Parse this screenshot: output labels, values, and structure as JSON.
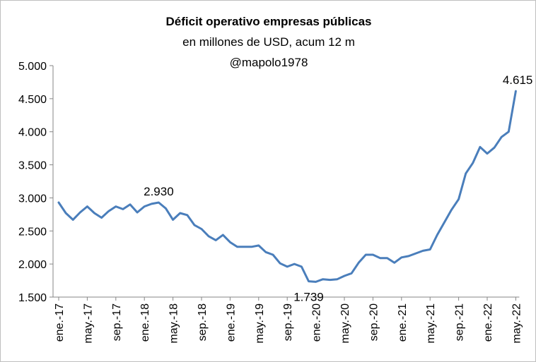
{
  "chart_data": {
    "type": "line",
    "title": "Déficit operativo empresas públicas",
    "subtitle": "en millones de USD, acum 12 m",
    "author": "@mapolo1978",
    "ylim": [
      1500,
      5000
    ],
    "yticks": [
      "1.500",
      "2.000",
      "2.500",
      "3.000",
      "3.500",
      "4.000",
      "4.500",
      "5.000"
    ],
    "ytick_values": [
      1500,
      2000,
      2500,
      3000,
      3500,
      4000,
      4500,
      5000
    ],
    "xtick_labels": [
      "ene.-17",
      "may.-17",
      "sep.-17",
      "ene.-18",
      "may.-18",
      "sep.-18",
      "ene.-19",
      "may.-19",
      "sep.-19",
      "ene.-20",
      "may.-20",
      "sep.-20",
      "ene.-21",
      "may.-21",
      "sep.-21",
      "ene.-22",
      "may.-22"
    ],
    "grid": false,
    "legend": "none",
    "line_color": "#4a7ebb",
    "series": [
      {
        "values": [
          2930,
          2770,
          2670,
          2780,
          2870,
          2770,
          2700,
          2800,
          2870,
          2830,
          2900,
          2780,
          2870,
          2910,
          2930,
          2840,
          2670,
          2770,
          2740,
          2590,
          2530,
          2420,
          2360,
          2440,
          2330,
          2260,
          2260,
          2260,
          2280,
          2180,
          2140,
          2010,
          1960,
          2000,
          1960,
          1739,
          1730,
          1770,
          1760,
          1770,
          1820,
          1860,
          2020,
          2140,
          2140,
          2090,
          2090,
          2020,
          2100,
          2120,
          2160,
          2200,
          2220,
          2440,
          2630,
          2820,
          2980,
          3370,
          3530,
          3770,
          3670,
          3760,
          3920,
          4000,
          4615
        ]
      }
    ],
    "data_labels": [
      {
        "index": 14,
        "text": "2.930",
        "position": "above"
      },
      {
        "index": 35,
        "text": "1.739",
        "position": "below"
      },
      {
        "index": 64,
        "text": "4.615",
        "position": "above"
      }
    ]
  }
}
